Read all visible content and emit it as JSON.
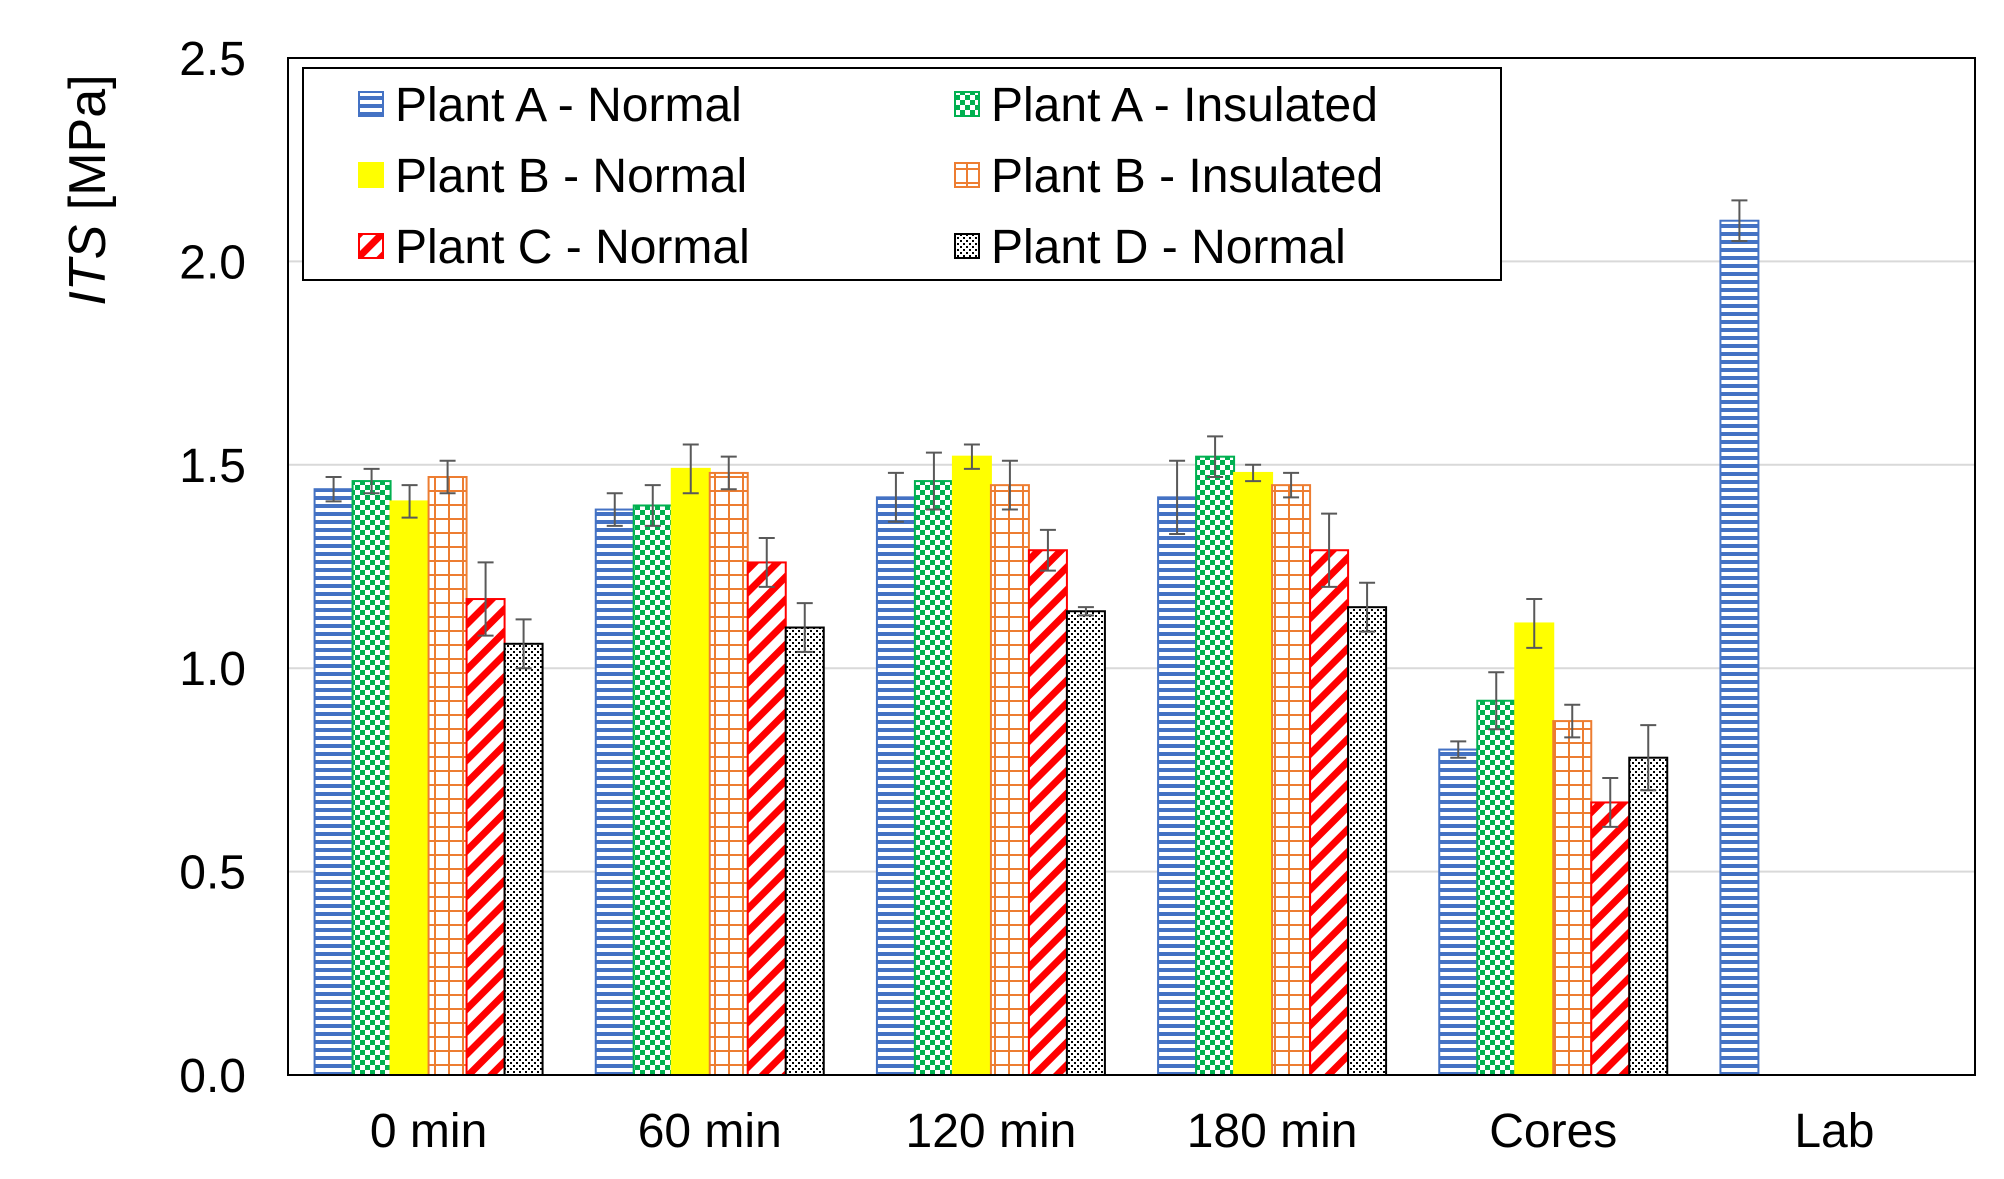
{
  "chart_data": {
    "type": "bar",
    "title": "",
    "xlabel": "",
    "ylabel_italic": "ITS",
    "ylabel_unit": " [MPa]",
    "ylim": [
      0,
      2.5
    ],
    "yticks": [
      "0.0",
      "0.5",
      "1.0",
      "1.5",
      "2.0",
      "2.5"
    ],
    "categories": [
      "0 min",
      "60 min",
      "120 min",
      "180 min",
      "Cores",
      "Lab"
    ],
    "series": [
      {
        "name": "Plant A - Normal",
        "pattern": "hstripes",
        "color": "#4472C4",
        "values": [
          1.44,
          1.39,
          1.42,
          1.42,
          0.8,
          2.1
        ],
        "errors": [
          0.03,
          0.04,
          0.06,
          0.09,
          0.02,
          0.05
        ]
      },
      {
        "name": "Plant A - Insulated",
        "pattern": "checker",
        "color": "#00B050",
        "values": [
          1.46,
          1.4,
          1.46,
          1.52,
          0.92,
          null
        ],
        "errors": [
          0.03,
          0.05,
          0.07,
          0.05,
          0.07,
          null
        ]
      },
      {
        "name": "Plant B - Normal",
        "pattern": "solid",
        "color": "#FFFF00",
        "values": [
          1.41,
          1.49,
          1.52,
          1.48,
          1.11,
          null
        ],
        "errors": [
          0.04,
          0.06,
          0.03,
          0.02,
          0.06,
          null
        ]
      },
      {
        "name": "Plant B - Insulated",
        "pattern": "grid",
        "color": "#ED7D31",
        "values": [
          1.47,
          1.48,
          1.45,
          1.45,
          0.87,
          null
        ],
        "errors": [
          0.04,
          0.04,
          0.06,
          0.03,
          0.04,
          null
        ]
      },
      {
        "name": "Plant C - Normal",
        "pattern": "diagonal",
        "color": "#FF0000",
        "values": [
          1.17,
          1.26,
          1.29,
          1.29,
          0.67,
          null
        ],
        "errors": [
          0.09,
          0.06,
          0.05,
          0.09,
          0.06,
          null
        ]
      },
      {
        "name": "Plant D - Normal",
        "pattern": "dots",
        "color": "#000000",
        "values": [
          1.06,
          1.1,
          1.14,
          1.15,
          0.78,
          null
        ],
        "errors": [
          0.06,
          0.06,
          0.01,
          0.06,
          0.08,
          null
        ]
      }
    ],
    "legend_position": "top-left",
    "grid": true
  }
}
